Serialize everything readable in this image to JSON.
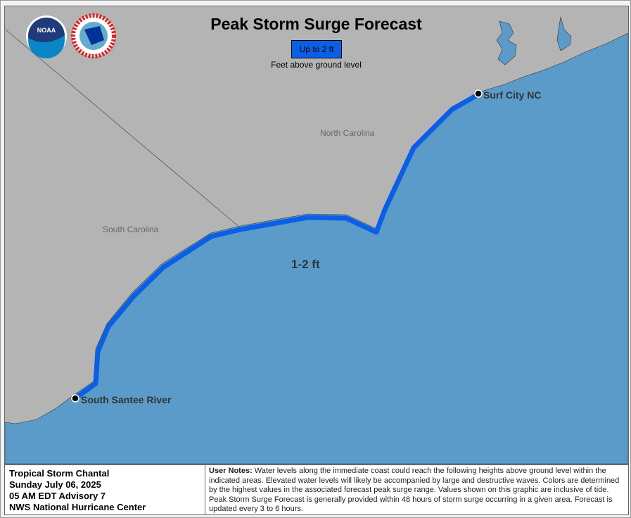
{
  "header": {
    "title": "Peak Storm Surge Forecast",
    "legend": {
      "label": "Up to 2 ft",
      "color": "#0a5fe6",
      "subtitle": "Feet above ground level"
    }
  },
  "logos": [
    "NOAA",
    "National Weather Service"
  ],
  "map": {
    "land_color": "#b4b4b4",
    "water_color": "#5b9bc9",
    "states": [
      "North Carolina",
      "South Carolina"
    ],
    "points": [
      "Surf City NC",
      "South Santee River"
    ],
    "surge_label": "1-2 ft"
  },
  "footer": {
    "storm": "Tropical Storm Chantal",
    "date": "Sunday July 06, 2025",
    "advisory": "05 AM EDT Advisory 7",
    "agency": "NWS National Hurricane Center",
    "notes_label": "User Notes:",
    "notes": " Water levels along the immediate coast could reach the following heights above ground level within the indicated areas. Elevated water levels will likely be accompanied by large and destructive waves. Colors are determined by the highest values in the associated forecast peak surge range. Values shown on this graphic are inclusive of tide.  Peak Storm Surge Forecast is generally provided within 48 hours of storm surge occurring in a given area.  Forecast is updated every 3 to 6 hours."
  }
}
